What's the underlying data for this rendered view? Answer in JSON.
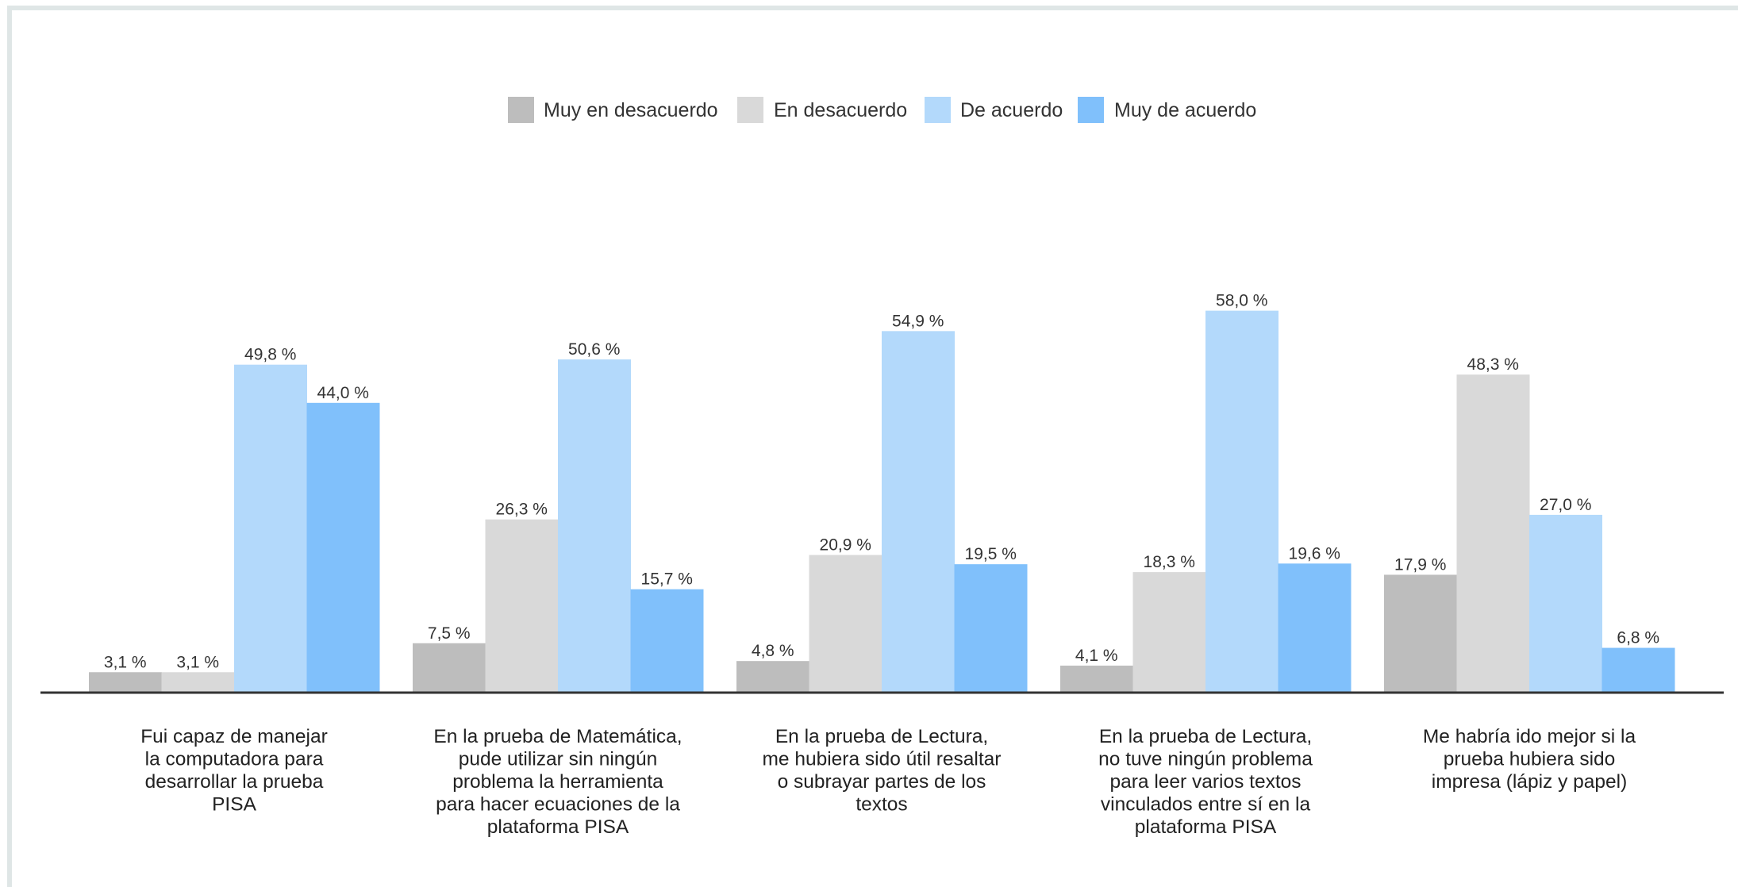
{
  "chart_data": {
    "type": "bar",
    "title": "",
    "xlabel": "",
    "ylabel": "",
    "ylim": [
      0,
      100
    ],
    "grid": false,
    "legend_position": "top-center",
    "categories": [
      "Fui capaz de manejar la computadora para desarrollar la prueba PISA",
      "En la prueba de Matemática, pude utilizar sin ningún problema la herramienta para hacer ecuaciones de la plataforma PISA",
      "En la prueba de Lectura, me hubiera sido útil resaltar o subrayar partes de los textos",
      "En la prueba de Lectura, no tuve ningún problema para leer varios textos vinculados entre sí en la plataforma PISA",
      "Me habría ido mejor si la prueba hubiera sido impresa (lápiz y papel)"
    ],
    "category_lines": [
      [
        "Fui capaz de manejar",
        "la computadora para",
        "desarrollar la prueba",
        "PISA"
      ],
      [
        "En la prueba de Matemática,",
        "pude utilizar sin ningún",
        "problema la herramienta",
        "para hacer ecuaciones de la",
        "plataforma PISA"
      ],
      [
        "En la prueba de Lectura,",
        "me hubiera sido útil resaltar",
        "o subrayar partes de los",
        "textos"
      ],
      [
        "En la prueba de Lectura,",
        "no tuve ningún problema",
        "para leer varios textos",
        "vinculados entre sí en la",
        "plataforma PISA"
      ],
      [
        "Me habría ido mejor si la",
        "prueba hubiera sido",
        "impresa (lápiz y papel)"
      ]
    ],
    "series": [
      {
        "name": "Muy en desacuerdo",
        "color": "#bdbdbd",
        "values": [
          3.1,
          7.5,
          4.8,
          4.1,
          17.9
        ],
        "labels": [
          "3,1 %",
          "7,5 %",
          "4,8 %",
          "4,1 %",
          "17,9 %"
        ]
      },
      {
        "name": "En desacuerdo",
        "color": "#d9d9d9",
        "values": [
          3.1,
          26.3,
          20.9,
          18.3,
          48.3
        ],
        "labels": [
          "3,1 %",
          "26,3 %",
          "20,9 %",
          "18,3 %",
          "48,3 %"
        ]
      },
      {
        "name": "De acuerdo",
        "color": "#b3d9fb",
        "values": [
          49.8,
          50.6,
          54.9,
          58.0,
          27.0
        ],
        "labels": [
          "49,8 %",
          "50,6 %",
          "54,9 %",
          "58,0 %",
          "27,0 %"
        ]
      },
      {
        "name": "Muy de acuerdo",
        "color": "#80c0fb",
        "values": [
          44.0,
          15.7,
          19.5,
          19.6,
          6.8
        ],
        "labels": [
          "44,0 %",
          "15,7 %",
          "19,5 %",
          "19,6 %",
          "6,8 %"
        ]
      }
    ]
  }
}
